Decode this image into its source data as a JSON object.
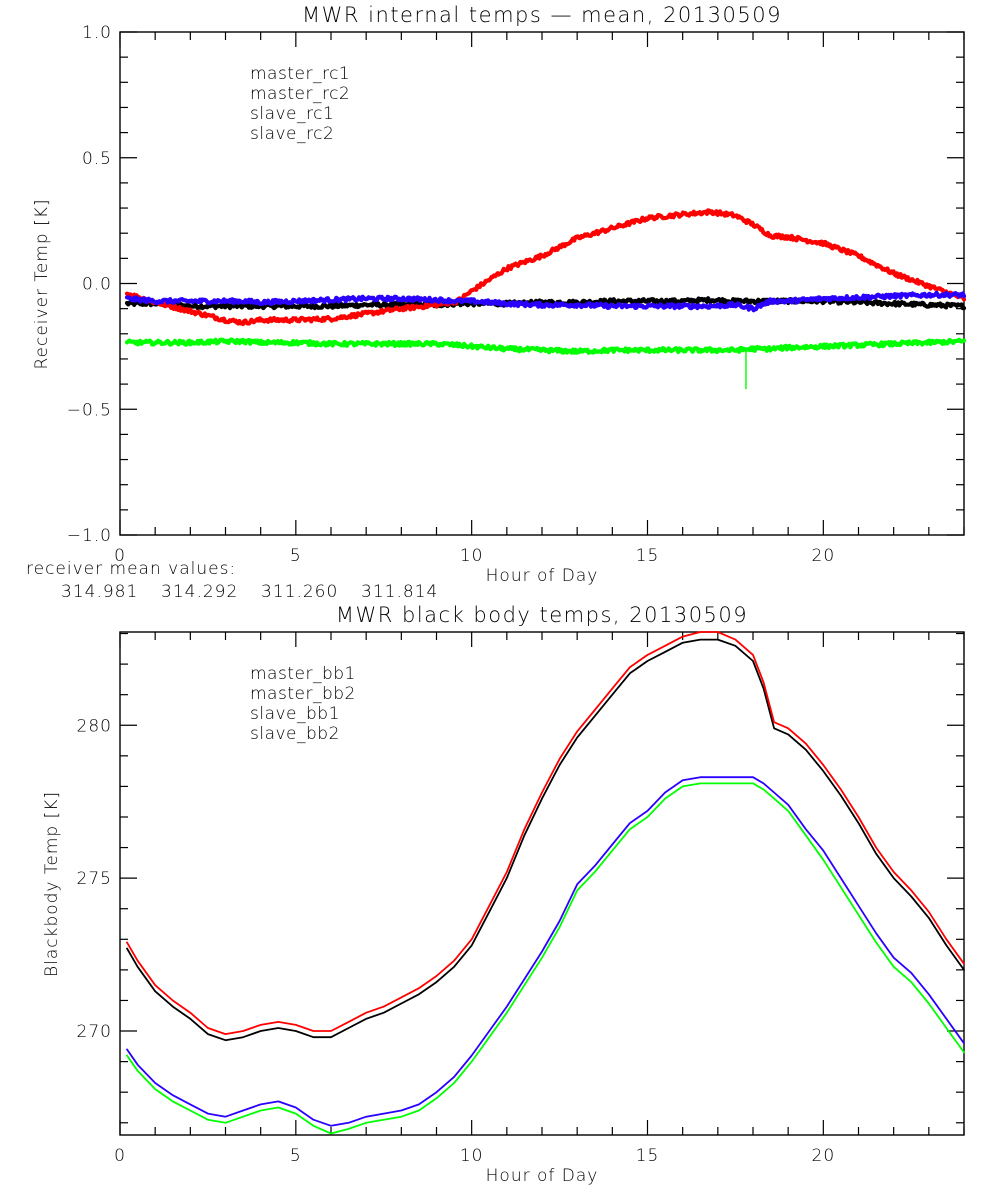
{
  "colors": {
    "black": "#000000",
    "red": "#ff0000",
    "blue": "#2a00ff",
    "green": "#00ff00"
  },
  "summary": {
    "label": "receiver mean values:",
    "values": [
      {
        "text": "314.981",
        "color": "#000000"
      },
      {
        "text": "314.292",
        "color": "#ff0000"
      },
      {
        "text": "311.260",
        "color": "#2a00ff"
      },
      {
        "text": "311.814",
        "color": "#00ff00"
      }
    ]
  },
  "chart_data": [
    {
      "type": "line",
      "title": "MWR internal temps — mean, 20130509",
      "xlabel": "Hour of Day",
      "ylabel": "Receiver Temp [K]",
      "xlim": [
        0,
        24
      ],
      "ylim": [
        -1.0,
        1.0
      ],
      "xticks": [
        0,
        5,
        10,
        15,
        20
      ],
      "xtick_labels": [
        "0",
        "5",
        "10",
        "15",
        "20"
      ],
      "x_minor_step": 1,
      "yticks": [
        -1.0,
        -0.5,
        0.0,
        0.5,
        1.0
      ],
      "ytick_labels": [
        "−1.0",
        "−0.5",
        "0.0",
        "0.5",
        "1.0"
      ],
      "y_minor_step": 0.1,
      "grid": false,
      "legend_position": "top-left",
      "noisy": true,
      "x": [
        0.2,
        1,
        2,
        3,
        3.5,
        4,
        5,
        6,
        7,
        8,
        9,
        9.6,
        10,
        11,
        12,
        13,
        14,
        15,
        16,
        16.8,
        17.5,
        18,
        18.5,
        19,
        20,
        21,
        22,
        23,
        24
      ],
      "series": [
        {
          "name": "master_rc1",
          "color": "#000000",
          "values": [
            -0.08,
            -0.08,
            -0.09,
            -0.09,
            -0.09,
            -0.09,
            -0.09,
            -0.09,
            -0.085,
            -0.085,
            -0.085,
            -0.08,
            -0.08,
            -0.08,
            -0.075,
            -0.075,
            -0.07,
            -0.07,
            -0.07,
            -0.065,
            -0.07,
            -0.07,
            -0.07,
            -0.07,
            -0.07,
            -0.075,
            -0.08,
            -0.085,
            -0.09
          ]
        },
        {
          "name": "master_rc2",
          "color": "#ff0000",
          "values": [
            -0.04,
            -0.075,
            -0.11,
            -0.145,
            -0.155,
            -0.145,
            -0.145,
            -0.14,
            -0.12,
            -0.1,
            -0.085,
            -0.07,
            -0.03,
            0.06,
            0.11,
            0.18,
            0.22,
            0.26,
            0.275,
            0.285,
            0.27,
            0.235,
            0.19,
            0.185,
            0.16,
            0.11,
            0.04,
            -0.01,
            -0.06
          ]
        },
        {
          "name": "slave_rc1",
          "color": "#2a00ff",
          "values": [
            -0.06,
            -0.07,
            -0.07,
            -0.07,
            -0.07,
            -0.075,
            -0.07,
            -0.065,
            -0.06,
            -0.06,
            -0.065,
            -0.07,
            -0.07,
            -0.08,
            -0.085,
            -0.085,
            -0.09,
            -0.09,
            -0.09,
            -0.09,
            -0.085,
            -0.1,
            -0.07,
            -0.07,
            -0.06,
            -0.055,
            -0.05,
            -0.045,
            -0.045
          ]
        },
        {
          "name": "slave_rc2",
          "color": "#00ff00",
          "values": [
            -0.235,
            -0.235,
            -0.235,
            -0.23,
            -0.23,
            -0.235,
            -0.235,
            -0.24,
            -0.24,
            -0.24,
            -0.24,
            -0.245,
            -0.25,
            -0.26,
            -0.265,
            -0.27,
            -0.265,
            -0.265,
            -0.265,
            -0.265,
            -0.265,
            -0.26,
            -0.26,
            -0.255,
            -0.25,
            -0.245,
            -0.24,
            -0.235,
            -0.23
          ]
        }
      ],
      "annotations": [
        {
          "series": "slave_rc2",
          "x": 17.8,
          "value": -0.42,
          "kind": "spike"
        }
      ]
    },
    {
      "type": "line",
      "title": "MWR black body temps, 20130509",
      "xlabel": "Hour of Day",
      "ylabel": "Blackbody Temp [K]",
      "xlim": [
        0,
        24
      ],
      "ylim": [
        266.6,
        283.05
      ],
      "xticks": [
        0,
        5,
        10,
        15,
        20
      ],
      "xtick_labels": [
        "0",
        "5",
        "10",
        "15",
        "20"
      ],
      "x_minor_step": 1,
      "yticks": [
        270,
        275,
        280
      ],
      "ytick_labels": [
        "270",
        "275",
        "280"
      ],
      "y_minor_step": 1,
      "grid": false,
      "legend_position": "top-left",
      "noisy": false,
      "x": [
        0.2,
        0.5,
        1,
        1.5,
        2,
        2.5,
        3,
        3.5,
        4,
        4.5,
        5,
        5.5,
        6,
        6.5,
        7,
        7.5,
        8,
        8.5,
        9,
        9.5,
        10,
        10.5,
        11,
        11.5,
        12,
        12.5,
        13,
        13.5,
        14,
        14.5,
        15,
        15.5,
        16,
        16.5,
        17,
        17.5,
        18,
        18.3,
        18.6,
        19,
        19.5,
        20,
        20.5,
        21,
        21.5,
        22,
        22.5,
        23,
        23.5,
        24
      ],
      "series": [
        {
          "name": "master_bb1",
          "color": "#000000",
          "values": [
            272.7,
            272.1,
            271.3,
            270.8,
            270.4,
            269.9,
            269.7,
            269.8,
            270.0,
            270.1,
            270.0,
            269.8,
            269.8,
            270.1,
            270.4,
            270.6,
            270.9,
            271.2,
            271.6,
            272.1,
            272.8,
            273.9,
            275.0,
            276.4,
            277.6,
            278.7,
            279.6,
            280.3,
            281.0,
            281.7,
            282.1,
            282.4,
            282.7,
            282.8,
            282.8,
            282.6,
            282.1,
            281.2,
            279.9,
            279.7,
            279.2,
            278.5,
            277.7,
            276.8,
            275.8,
            275.0,
            274.4,
            273.7,
            272.8,
            272.0
          ]
        },
        {
          "name": "master_bb2",
          "color": "#ff0000",
          "values": [
            272.9,
            272.3,
            271.5,
            271.0,
            270.6,
            270.1,
            269.9,
            270.0,
            270.2,
            270.3,
            270.2,
            270.0,
            270.0,
            270.3,
            270.6,
            270.8,
            271.1,
            271.4,
            271.8,
            272.3,
            273.0,
            274.1,
            275.2,
            276.6,
            277.8,
            278.9,
            279.8,
            280.5,
            281.2,
            281.9,
            282.3,
            282.6,
            282.9,
            283.05,
            283.05,
            282.8,
            282.3,
            281.4,
            280.1,
            279.9,
            279.4,
            278.7,
            277.9,
            277.0,
            276.0,
            275.2,
            274.6,
            273.9,
            273.0,
            272.2
          ]
        },
        {
          "name": "slave_bb1",
          "color": "#2a00ff",
          "values": [
            269.4,
            268.9,
            268.3,
            267.9,
            267.6,
            267.3,
            267.2,
            267.4,
            267.6,
            267.7,
            267.5,
            267.1,
            266.9,
            267.0,
            267.2,
            267.3,
            267.4,
            267.6,
            268.0,
            268.5,
            269.2,
            270.0,
            270.8,
            271.7,
            272.6,
            273.6,
            274.8,
            275.4,
            276.1,
            276.8,
            277.2,
            277.8,
            278.2,
            278.3,
            278.3,
            278.3,
            278.3,
            278.1,
            277.8,
            277.4,
            276.6,
            275.9,
            275.0,
            274.1,
            273.2,
            272.4,
            271.9,
            271.2,
            270.4,
            269.6
          ]
        },
        {
          "name": "slave_bb2",
          "color": "#00ff00",
          "values": [
            269.2,
            268.7,
            268.1,
            267.7,
            267.4,
            267.1,
            267.0,
            267.2,
            267.4,
            267.5,
            267.3,
            266.9,
            266.65,
            266.8,
            267.0,
            267.1,
            267.2,
            267.4,
            267.8,
            268.3,
            269.0,
            269.8,
            270.6,
            271.5,
            272.4,
            273.4,
            274.6,
            275.2,
            275.9,
            276.6,
            277.0,
            277.6,
            278.0,
            278.1,
            278.1,
            278.1,
            278.1,
            277.9,
            277.6,
            277.2,
            276.4,
            275.6,
            274.7,
            273.8,
            272.9,
            272.1,
            271.6,
            270.9,
            270.1,
            269.3
          ]
        }
      ]
    }
  ]
}
